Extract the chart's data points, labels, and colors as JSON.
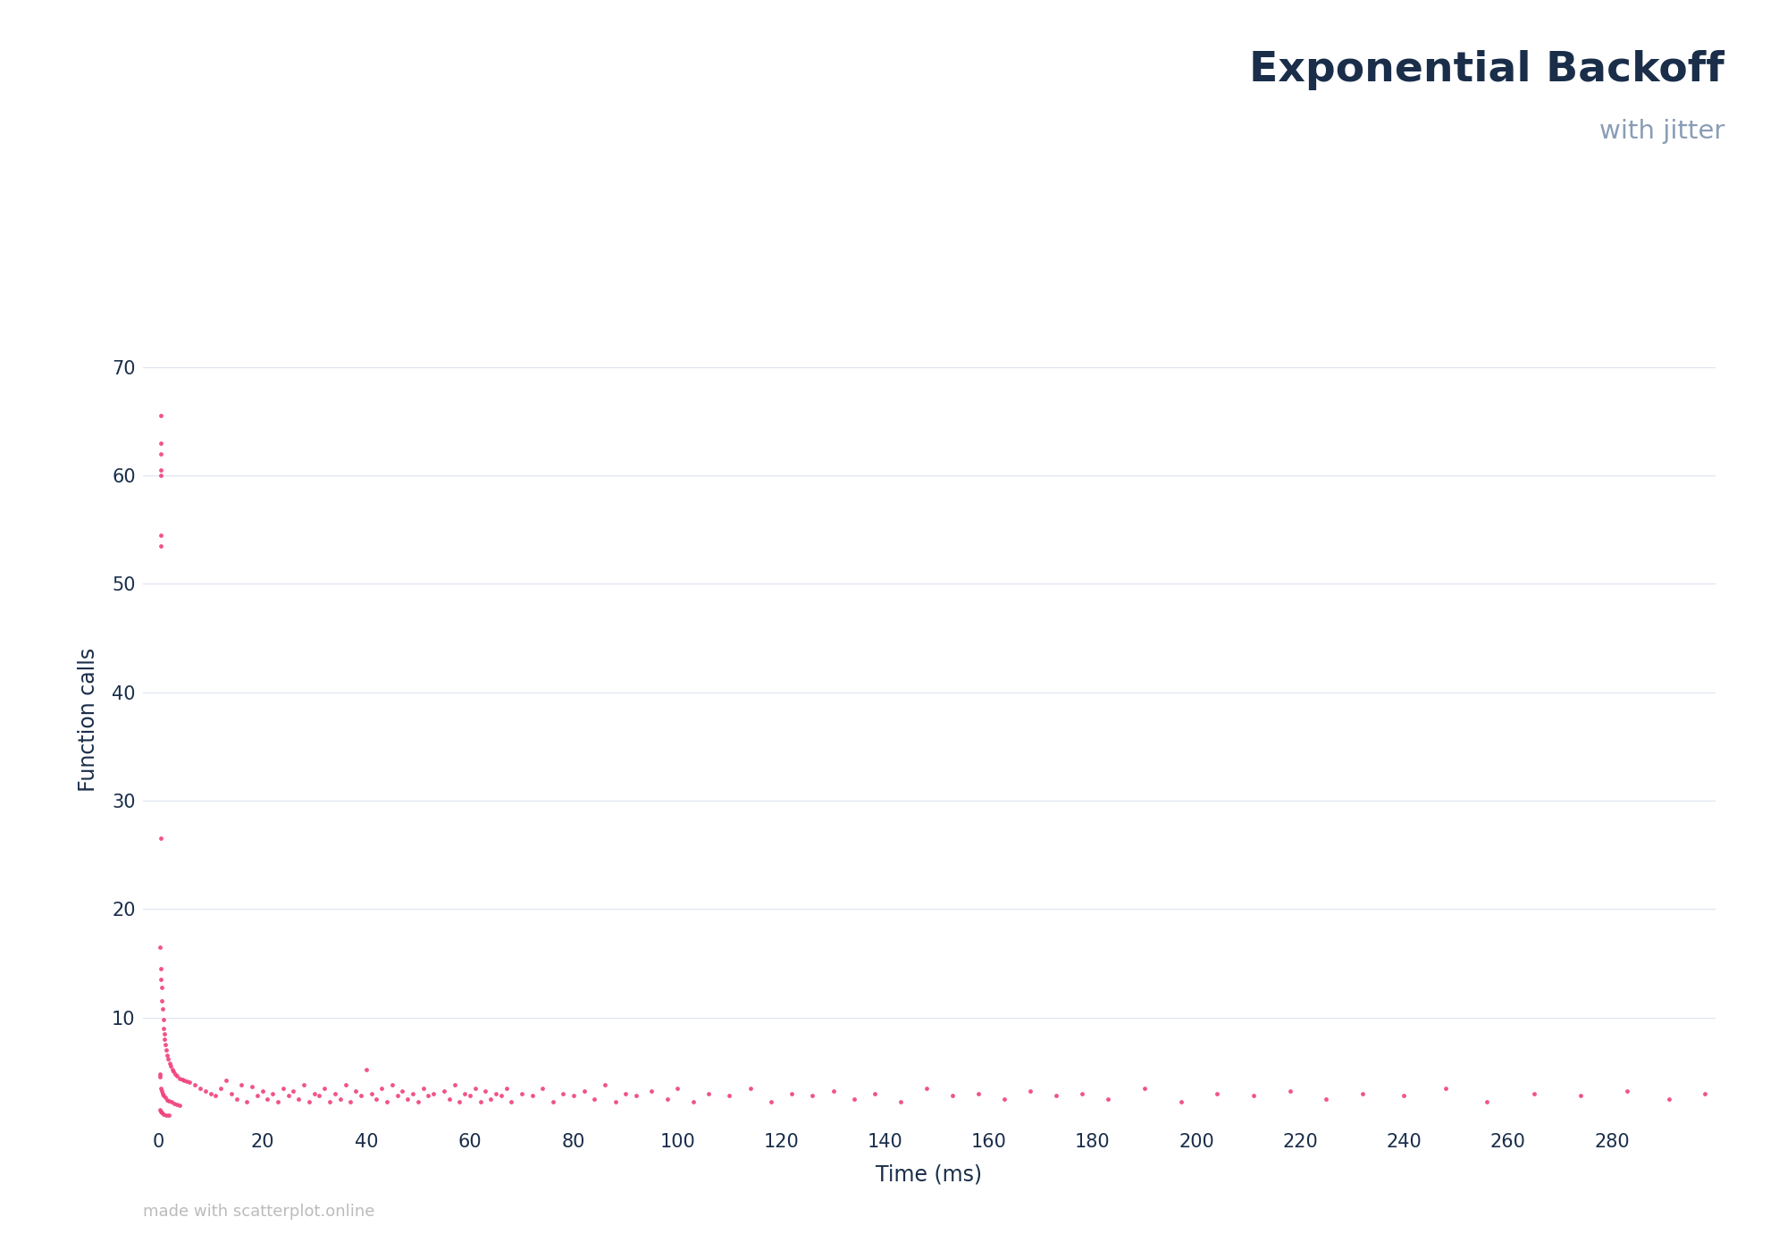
{
  "title": "Exponential Backoff",
  "subtitle": "with jitter",
  "xlabel": "Time (ms)",
  "ylabel": "Function calls",
  "title_color": "#1a2e4a",
  "subtitle_color": "#8a9db5",
  "axis_label_color": "#1a2e4a",
  "tick_color": "#1a2e4a",
  "dot_color": "#f0407a",
  "grid_color": "#dde3f0",
  "background_color": "#ffffff",
  "watermark": "made with scatterplot.online",
  "xlim": [
    -3,
    300
  ],
  "ylim": [
    0,
    75
  ],
  "yticks": [
    10,
    20,
    30,
    40,
    50,
    60,
    70
  ],
  "xticks": [
    0,
    20,
    40,
    60,
    80,
    100,
    120,
    140,
    160,
    180,
    200,
    220,
    240,
    260,
    280
  ],
  "dot_size": 12,
  "dot_alpha": 0.9,
  "high_y_outliers": [
    [
      0.5,
      65.5
    ],
    [
      0.5,
      63.0
    ],
    [
      0.5,
      62.0
    ],
    [
      0.5,
      60.5
    ],
    [
      0.5,
      60.0
    ],
    [
      0.5,
      54.5
    ],
    [
      0.5,
      53.5
    ],
    [
      0.5,
      26.5
    ]
  ],
  "dense_cluster": [
    [
      0.3,
      16.5
    ],
    [
      0.4,
      14.5
    ],
    [
      0.5,
      13.5
    ],
    [
      0.6,
      12.8
    ],
    [
      0.7,
      11.5
    ],
    [
      0.8,
      10.8
    ],
    [
      0.9,
      9.8
    ],
    [
      1.0,
      9.0
    ],
    [
      1.1,
      8.5
    ],
    [
      1.2,
      8.0
    ],
    [
      1.3,
      7.5
    ],
    [
      1.5,
      7.0
    ],
    [
      1.7,
      6.5
    ],
    [
      1.9,
      6.2
    ],
    [
      2.1,
      5.8
    ],
    [
      2.3,
      5.5
    ],
    [
      2.6,
      5.2
    ],
    [
      2.9,
      5.0
    ],
    [
      3.2,
      4.8
    ],
    [
      3.6,
      4.6
    ],
    [
      4.0,
      4.4
    ],
    [
      4.5,
      4.3
    ],
    [
      5.0,
      4.2
    ],
    [
      5.5,
      4.1
    ],
    [
      6.0,
      4.0
    ],
    [
      0.4,
      3.5
    ],
    [
      0.6,
      3.2
    ],
    [
      0.8,
      3.0
    ],
    [
      1.0,
      2.8
    ],
    [
      1.3,
      2.6
    ],
    [
      1.6,
      2.4
    ],
    [
      2.0,
      2.3
    ],
    [
      2.5,
      2.2
    ],
    [
      3.0,
      2.1
    ],
    [
      3.5,
      2.0
    ],
    [
      4.0,
      1.9
    ],
    [
      0.3,
      1.5
    ],
    [
      0.5,
      1.3
    ],
    [
      0.7,
      1.2
    ],
    [
      1.0,
      1.1
    ],
    [
      1.5,
      1.0
    ],
    [
      2.0,
      1.0
    ],
    [
      0.2,
      4.5
    ],
    [
      0.3,
      4.8
    ]
  ],
  "scattered": [
    [
      7,
      3.8
    ],
    [
      8,
      3.5
    ],
    [
      9,
      3.2
    ],
    [
      10,
      3.0
    ],
    [
      11,
      2.8
    ],
    [
      12,
      3.5
    ],
    [
      13,
      4.2
    ],
    [
      14,
      3.0
    ],
    [
      15,
      2.5
    ],
    [
      16,
      3.8
    ],
    [
      17,
      2.2
    ],
    [
      18,
      3.6
    ],
    [
      19,
      2.8
    ],
    [
      20,
      3.2
    ],
    [
      21,
      2.5
    ],
    [
      22,
      3.0
    ],
    [
      23,
      2.2
    ],
    [
      24,
      3.5
    ],
    [
      25,
      2.8
    ],
    [
      26,
      3.2
    ],
    [
      27,
      2.5
    ],
    [
      28,
      3.8
    ],
    [
      29,
      2.2
    ],
    [
      30,
      3.0
    ],
    [
      31,
      2.8
    ],
    [
      32,
      3.5
    ],
    [
      33,
      2.2
    ],
    [
      34,
      3.0
    ],
    [
      35,
      2.5
    ],
    [
      36,
      3.8
    ],
    [
      37,
      2.2
    ],
    [
      38,
      3.2
    ],
    [
      39,
      2.8
    ],
    [
      40,
      5.2
    ],
    [
      41,
      3.0
    ],
    [
      42,
      2.5
    ],
    [
      43,
      3.5
    ],
    [
      44,
      2.2
    ],
    [
      45,
      3.8
    ],
    [
      46,
      2.8
    ],
    [
      47,
      3.2
    ],
    [
      48,
      2.5
    ],
    [
      49,
      3.0
    ],
    [
      50,
      2.2
    ],
    [
      51,
      3.5
    ],
    [
      52,
      2.8
    ],
    [
      53,
      3.0
    ],
    [
      55,
      3.2
    ],
    [
      56,
      2.5
    ],
    [
      57,
      3.8
    ],
    [
      58,
      2.2
    ],
    [
      59,
      3.0
    ],
    [
      60,
      2.8
    ],
    [
      61,
      3.5
    ],
    [
      62,
      2.2
    ],
    [
      63,
      3.2
    ],
    [
      64,
      2.5
    ],
    [
      65,
      3.0
    ],
    [
      66,
      2.8
    ],
    [
      67,
      3.5
    ],
    [
      68,
      2.2
    ],
    [
      70,
      3.0
    ],
    [
      72,
      2.8
    ],
    [
      74,
      3.5
    ],
    [
      76,
      2.2
    ],
    [
      78,
      3.0
    ],
    [
      80,
      2.8
    ],
    [
      82,
      3.2
    ],
    [
      84,
      2.5
    ],
    [
      86,
      3.8
    ],
    [
      88,
      2.2
    ],
    [
      90,
      3.0
    ],
    [
      92,
      2.8
    ],
    [
      95,
      3.2
    ],
    [
      98,
      2.5
    ],
    [
      100,
      3.5
    ],
    [
      103,
      2.2
    ],
    [
      106,
      3.0
    ],
    [
      110,
      2.8
    ],
    [
      114,
      3.5
    ],
    [
      118,
      2.2
    ],
    [
      122,
      3.0
    ],
    [
      126,
      2.8
    ],
    [
      130,
      3.2
    ],
    [
      134,
      2.5
    ],
    [
      138,
      3.0
    ],
    [
      143,
      2.2
    ],
    [
      148,
      3.5
    ],
    [
      153,
      2.8
    ],
    [
      158,
      3.0
    ],
    [
      163,
      2.5
    ],
    [
      168,
      3.2
    ],
    [
      173,
      2.8
    ],
    [
      178,
      3.0
    ],
    [
      183,
      2.5
    ],
    [
      190,
      3.5
    ],
    [
      197,
      2.2
    ],
    [
      204,
      3.0
    ],
    [
      211,
      2.8
    ],
    [
      218,
      3.2
    ],
    [
      225,
      2.5
    ],
    [
      232,
      3.0
    ],
    [
      240,
      2.8
    ],
    [
      248,
      3.5
    ],
    [
      256,
      2.2
    ],
    [
      265,
      3.0
    ],
    [
      274,
      2.8
    ],
    [
      283,
      3.2
    ],
    [
      291,
      2.5
    ],
    [
      298,
      3.0
    ]
  ]
}
